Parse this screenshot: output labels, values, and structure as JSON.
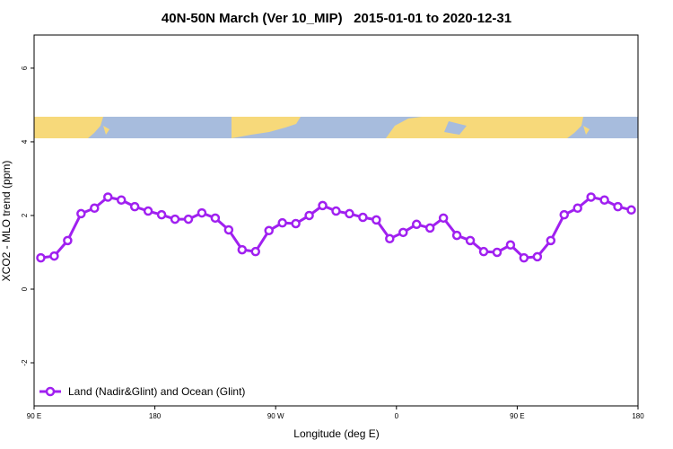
{
  "chart_data": {
    "type": "line",
    "title": "40N-50N March (Ver 10_MIP)   2015-01-01 to 2020-12-31",
    "xlabel": "Longitude (deg E)",
    "ylabel": "XCO2 - MLO trend (ppm)",
    "xlim": [
      90,
      540
    ],
    "ylim": [
      -3.17,
      6.9
    ],
    "xticks": [
      {
        "value": 90,
        "label": "90 E"
      },
      180,
      {
        "value": 270,
        "label": "90 W"
      },
      {
        "value": 360,
        "label": "0"
      },
      {
        "value": 450,
        "label": "90 E"
      },
      {
        "value": 540,
        "label": "180"
      }
    ],
    "yticks": [
      -2,
      0,
      2,
      4,
      6
    ],
    "legend": "bottom-left",
    "x": [
      95,
      105,
      115,
      125,
      135,
      145,
      155,
      165,
      175,
      185,
      195,
      205,
      215,
      225,
      235,
      245,
      255,
      265,
      275,
      285,
      295,
      305,
      315,
      325,
      335,
      345,
      355,
      365,
      375,
      385,
      395,
      405,
      415,
      425,
      435,
      445,
      455,
      465,
      475,
      485,
      495,
      505,
      515,
      525,
      535
    ],
    "series": [
      {
        "name": "Land (Nadir&Glint) and Ocean (Glint)",
        "color": "#a020f0",
        "values": [
          0.85,
          0.9,
          1.32,
          2.05,
          2.2,
          2.5,
          2.42,
          2.24,
          2.12,
          2.02,
          1.9,
          1.9,
          2.07,
          1.93,
          1.61,
          1.07,
          1.02,
          1.59,
          1.8,
          1.78,
          2.0,
          2.27,
          2.12,
          2.05,
          1.95,
          1.88,
          1.37,
          1.54,
          1.76,
          1.66,
          1.93,
          1.46,
          1.32,
          1.02,
          1.0,
          1.2,
          0.85,
          0.88,
          1.32,
          2.02,
          2.2,
          2.5,
          2.42,
          2.24,
          2.15
        ]
      }
    ]
  }
}
